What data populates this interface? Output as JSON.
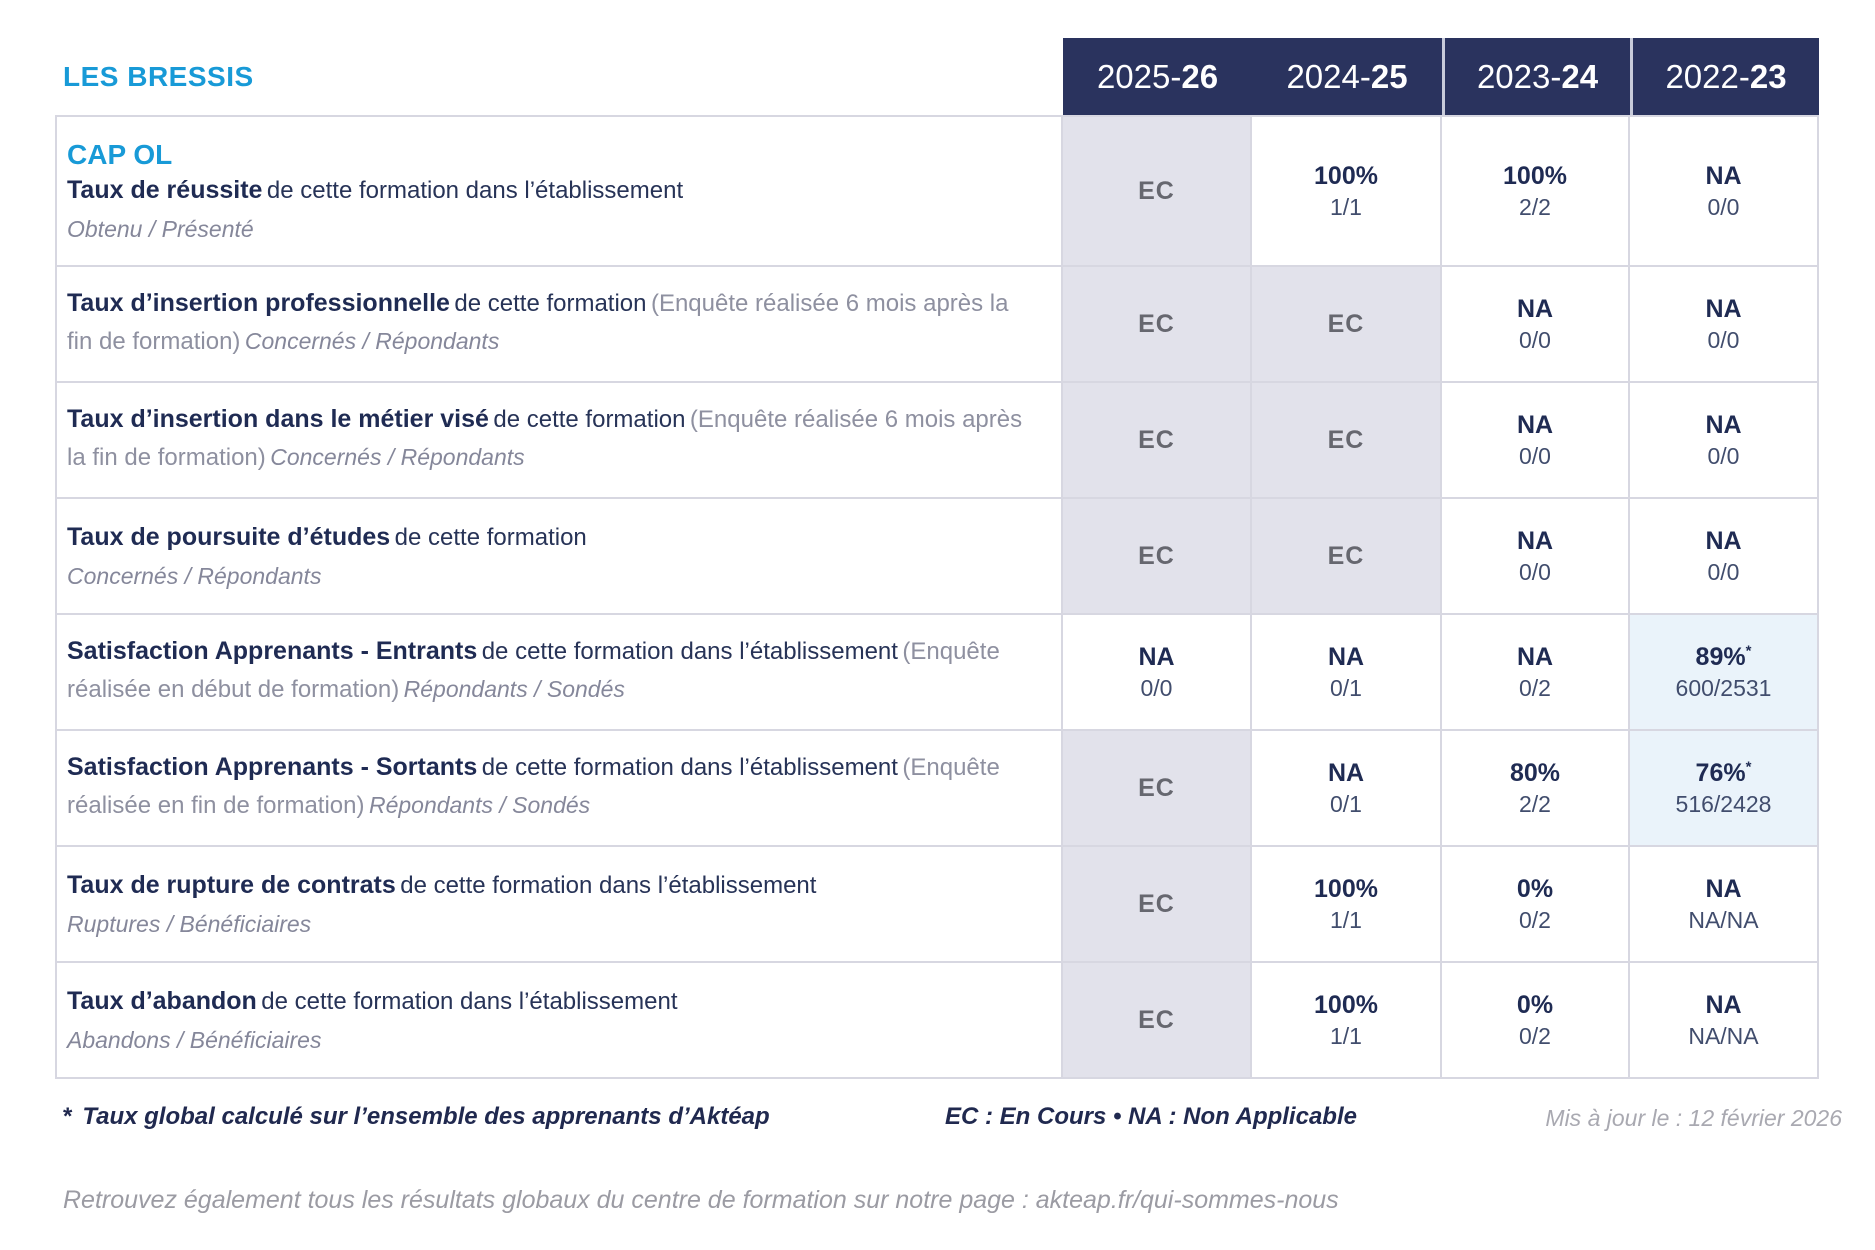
{
  "brand": {
    "label": "LES BRESSIS"
  },
  "colors": {
    "accent_blue": "#189ad7",
    "header_navy": "#2a335e",
    "text_navy": "#1f2b53",
    "text_grey": "#8e90a0",
    "ec_text_grey": "#66676f",
    "ec_bg": "#e2e2eb",
    "highlight_bg": "#eaf3fa",
    "border_grey": "#d7d7e1",
    "muted_grey": "#a9a9b1"
  },
  "header": {
    "years": [
      {
        "prefix": "2025-",
        "suffix": "26"
      },
      {
        "prefix": "2024-",
        "suffix": "25"
      },
      {
        "prefix": "2023-",
        "suffix": "24"
      },
      {
        "prefix": "2022-",
        "suffix": "23"
      }
    ]
  },
  "rows": [
    {
      "program": "CAP OL",
      "title": "Taux de réussite",
      "desc": "de cette formation dans l’établissement",
      "paren": "",
      "trailer": "",
      "sub": "Obtenu / Présenté",
      "cells": [
        {
          "main": "EC",
          "ec": true
        },
        {
          "main": "100%",
          "frac": "1/1"
        },
        {
          "main": "100%",
          "frac": "2/2"
        },
        {
          "main": "NA",
          "frac": "0/0"
        }
      ]
    },
    {
      "title": "Taux d’insertion professionnelle",
      "desc": "de cette formation",
      "paren": "(Enquête réalisée 6 mois après la fin de formation)",
      "trailer": "Concernés / Répondants",
      "sub": "",
      "cells": [
        {
          "main": "EC",
          "ec": true
        },
        {
          "main": "EC",
          "ec": true
        },
        {
          "main": "NA",
          "frac": "0/0"
        },
        {
          "main": "NA",
          "frac": "0/0"
        }
      ]
    },
    {
      "title": "Taux d’insertion dans le métier visé",
      "desc": "de cette formation",
      "paren": "(Enquête réalisée 6 mois après la fin de formation)",
      "trailer": "Concernés / Répondants",
      "sub": "",
      "cells": [
        {
          "main": "EC",
          "ec": true
        },
        {
          "main": "EC",
          "ec": true
        },
        {
          "main": "NA",
          "frac": "0/0"
        },
        {
          "main": "NA",
          "frac": "0/0"
        }
      ]
    },
    {
      "title": "Taux de poursuite d’études",
      "desc": "de cette formation",
      "paren": "",
      "trailer": "",
      "sub": "Concernés / Répondants",
      "cells": [
        {
          "main": "EC",
          "ec": true
        },
        {
          "main": "EC",
          "ec": true
        },
        {
          "main": "NA",
          "frac": "0/0"
        },
        {
          "main": "NA",
          "frac": "0/0"
        }
      ]
    },
    {
      "title": "Satisfaction Apprenants - Entrants",
      "desc": "de cette formation dans l’établissement",
      "paren": "(Enquête réalisée en début de formation)",
      "trailer": "Répondants / Sondés",
      "sub": "",
      "cells": [
        {
          "main": "NA",
          "frac": "0/0"
        },
        {
          "main": "NA",
          "frac": "0/1"
        },
        {
          "main": "NA",
          "frac": "0/2"
        },
        {
          "main": "89%",
          "sup": "*",
          "frac": "600/2531",
          "highlight": true
        }
      ]
    },
    {
      "title": "Satisfaction Apprenants - Sortants",
      "desc": "de cette formation dans l’établissement",
      "paren": "(Enquête réalisée en fin de formation)",
      "trailer": "Répondants / Sondés",
      "sub": "",
      "cells": [
        {
          "main": "EC",
          "ec": true
        },
        {
          "main": "NA",
          "frac": "0/1"
        },
        {
          "main": "80%",
          "frac": "2/2"
        },
        {
          "main": "76%",
          "sup": "*",
          "frac": "516/2428",
          "highlight": true
        }
      ]
    },
    {
      "title": "Taux de rupture de contrats",
      "desc": "de cette formation dans l’établissement",
      "paren": "",
      "trailer": "",
      "sub": "Ruptures / Bénéficiaires",
      "cells": [
        {
          "main": "EC",
          "ec": true
        },
        {
          "main": "100%",
          "frac": "1/1"
        },
        {
          "main": "0%",
          "frac": "0/2"
        },
        {
          "main": "NA",
          "frac": "NA/NA"
        }
      ]
    },
    {
      "title": "Taux d’abandon",
      "desc": "de cette formation dans l’établissement",
      "paren": "",
      "trailer": "",
      "sub": "Abandons / Bénéficiaires",
      "cells": [
        {
          "main": "EC",
          "ec": true
        },
        {
          "main": "100%",
          "frac": "1/1"
        },
        {
          "main": "0%",
          "frac": "0/2"
        },
        {
          "main": "NA",
          "frac": "NA/NA"
        }
      ]
    }
  ],
  "footer": {
    "note_star": "*",
    "note_text": "Taux global calculé sur l’ensemble des apprenants d’Aktéap",
    "legend": "EC : En Cours   •   NA : Non Applicable",
    "updated": "Mis à jour le : 12 février 2026",
    "bottom_text": "Retrouvez également tous les résultats globaux du centre de formation sur notre page : akteap.fr/qui-sommes-nous"
  }
}
